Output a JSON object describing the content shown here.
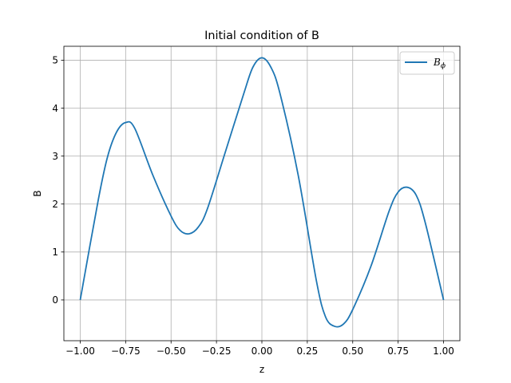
{
  "chart_data": {
    "type": "line",
    "title": "Initial condition of B",
    "xlabel": "z",
    "ylabel": "B",
    "xlim": [
      -1.09,
      1.09
    ],
    "ylim": [
      -0.85,
      5.29
    ],
    "x_ticks": [
      -1.0,
      -0.75,
      -0.5,
      -0.25,
      0.0,
      0.25,
      0.5,
      0.75,
      1.0
    ],
    "x_tick_labels": [
      "−1.00",
      "−0.75",
      "−0.50",
      "−0.25",
      "0.00",
      "0.25",
      "0.50",
      "0.75",
      "1.00"
    ],
    "y_ticks": [
      0,
      1,
      2,
      3,
      4,
      5
    ],
    "y_tick_labels": [
      "0",
      "1",
      "2",
      "3",
      "4",
      "5"
    ],
    "grid": true,
    "legend_position": "upper right",
    "colors": {
      "series": "#1f77b4",
      "grid": "#b0b0b0",
      "axes": "#000000"
    },
    "series": [
      {
        "name": "B",
        "name_subscript": "ϕ",
        "x": [
          -1.0,
          -0.9,
          -0.85,
          -0.8,
          -0.75,
          -0.7,
          -0.6,
          -0.5,
          -0.45,
          -0.4,
          -0.35,
          -0.3,
          -0.2,
          -0.1,
          -0.05,
          0.0,
          0.05,
          0.1,
          0.2,
          0.3,
          0.35,
          0.4,
          0.45,
          0.5,
          0.6,
          0.7,
          0.75,
          0.8,
          0.85,
          0.9,
          1.0
        ],
        "y": [
          0.0,
          2.1,
          2.98,
          3.5,
          3.7,
          3.58,
          2.6,
          1.75,
          1.45,
          1.38,
          1.52,
          1.9,
          3.1,
          4.3,
          4.85,
          5.05,
          4.85,
          4.3,
          2.6,
          0.4,
          -0.35,
          -0.55,
          -0.5,
          -0.2,
          0.7,
          1.85,
          2.25,
          2.35,
          2.18,
          1.6,
          0.0
        ]
      }
    ]
  }
}
